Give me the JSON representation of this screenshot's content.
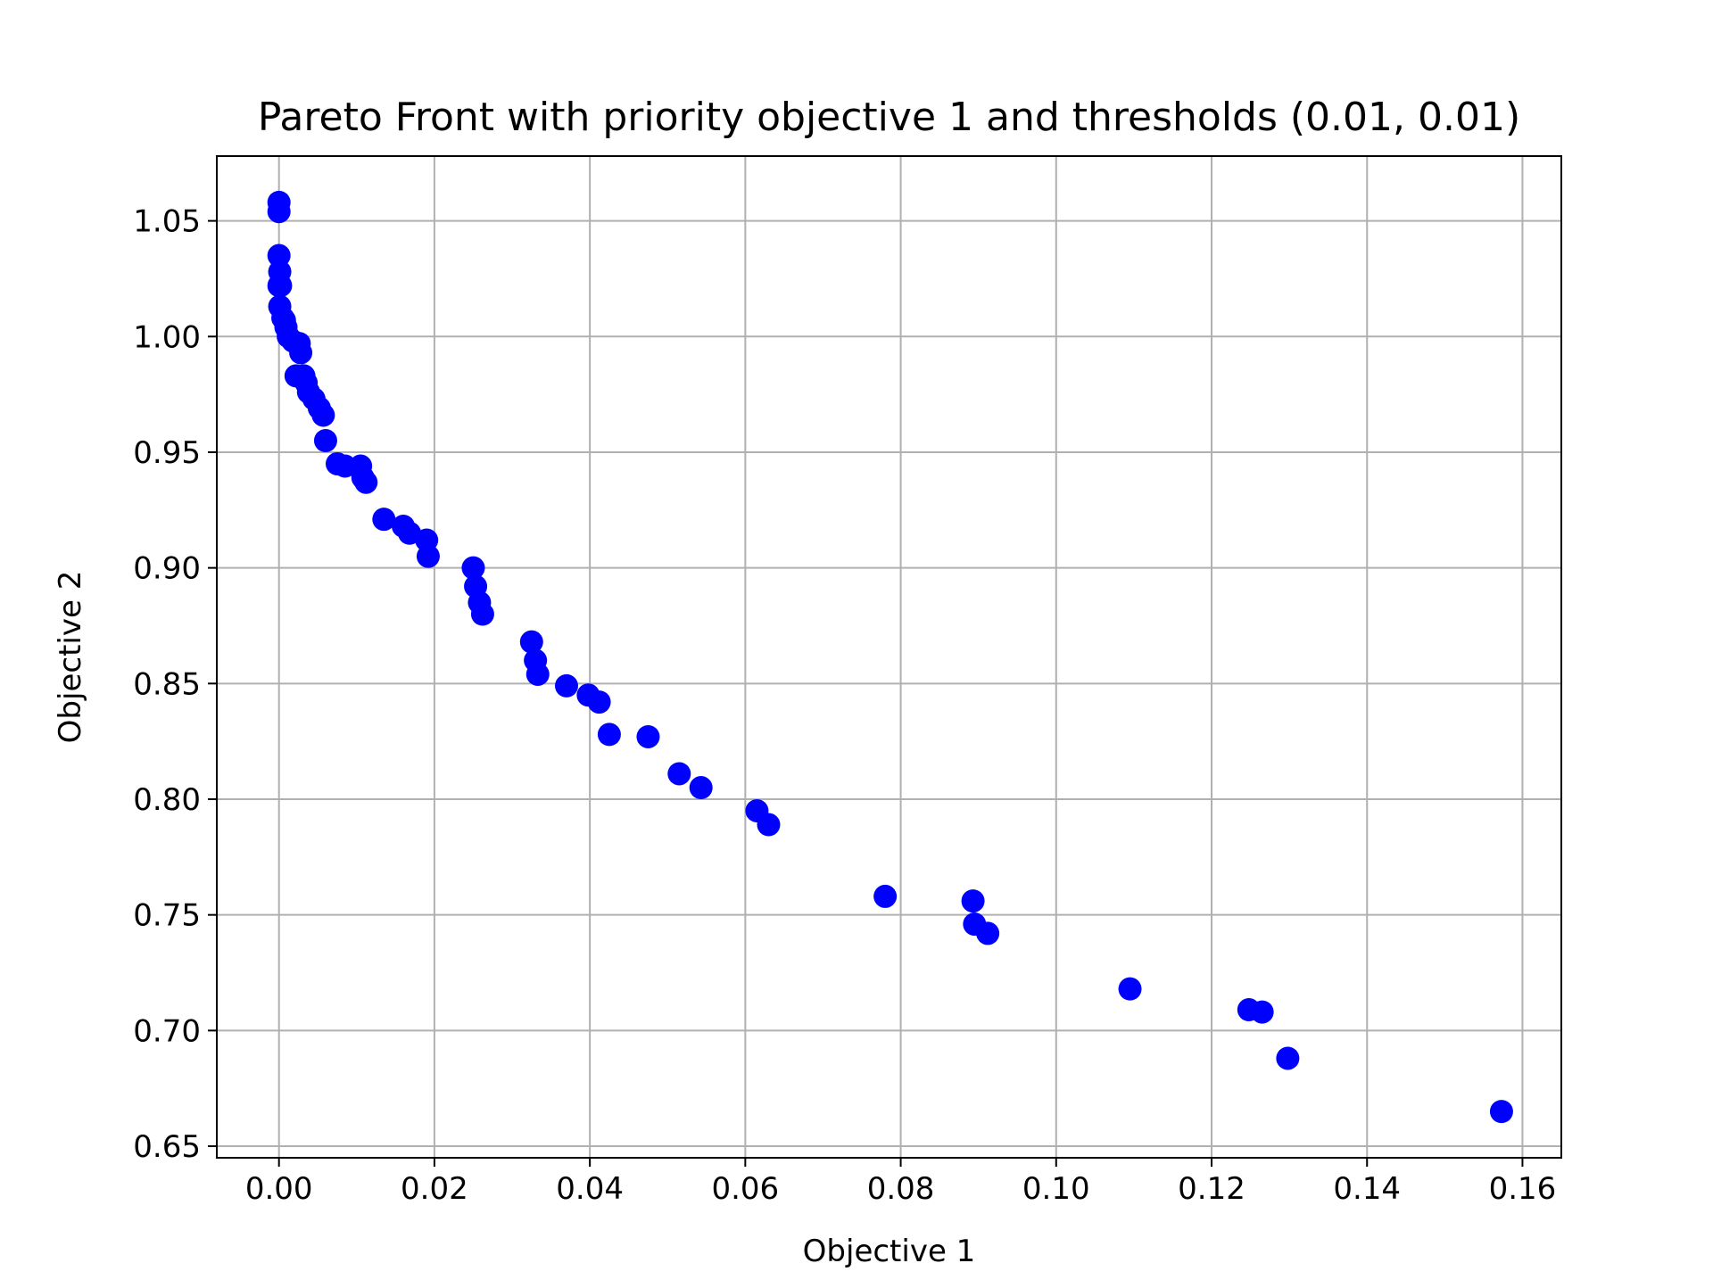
{
  "chart_data": {
    "type": "scatter",
    "title": "Pareto Front with priority objective 1 and thresholds (0.01, 0.01)",
    "xlabel": "Objective 1",
    "ylabel": "Objective 2",
    "xlim": [
      -0.008,
      0.165
    ],
    "ylim": [
      0.645,
      1.078
    ],
    "xticks": [
      0.0,
      0.02,
      0.04,
      0.06,
      0.08,
      0.1,
      0.12,
      0.14,
      0.16
    ],
    "xtick_labels": [
      "0.00",
      "0.02",
      "0.04",
      "0.06",
      "0.08",
      "0.10",
      "0.12",
      "0.14",
      "0.16"
    ],
    "yticks": [
      0.65,
      0.7,
      0.75,
      0.8,
      0.85,
      0.9,
      0.95,
      1.0,
      1.05
    ],
    "ytick_labels": [
      "0.65",
      "0.70",
      "0.75",
      "0.80",
      "0.85",
      "0.90",
      "0.95",
      "1.00",
      "1.05"
    ],
    "grid": true,
    "marker_color": "#0000ff",
    "x": [
      0.0,
      0.0,
      0.0,
      0.0001,
      0.0,
      0.0002,
      0.0001,
      0.0005,
      0.0007,
      0.0009,
      0.0012,
      0.0018,
      0.0026,
      0.0028,
      0.0022,
      0.0032,
      0.0035,
      0.0038,
      0.0045,
      0.0052,
      0.0057,
      0.006,
      0.0075,
      0.0085,
      0.0105,
      0.0108,
      0.0112,
      0.0135,
      0.016,
      0.0168,
      0.019,
      0.0192,
      0.025,
      0.0253,
      0.0258,
      0.0262,
      0.0325,
      0.033,
      0.0333,
      0.037,
      0.0398,
      0.0412,
      0.0425,
      0.0475,
      0.0515,
      0.0543,
      0.0615,
      0.063,
      0.078,
      0.0893,
      0.0895,
      0.0912,
      0.1095,
      0.1248,
      0.1265,
      0.1298,
      0.1573
    ],
    "y": [
      1.058,
      1.054,
      1.035,
      1.028,
      1.022,
      1.022,
      1.013,
      1.008,
      1.007,
      1.004,
      1.0,
      0.998,
      0.997,
      0.993,
      0.983,
      0.983,
      0.98,
      0.976,
      0.973,
      0.969,
      0.966,
      0.955,
      0.945,
      0.944,
      0.944,
      0.939,
      0.937,
      0.921,
      0.918,
      0.915,
      0.912,
      0.905,
      0.9,
      0.892,
      0.885,
      0.88,
      0.868,
      0.86,
      0.854,
      0.849,
      0.845,
      0.842,
      0.828,
      0.827,
      0.811,
      0.805,
      0.795,
      0.789,
      0.758,
      0.756,
      0.746,
      0.742,
      0.718,
      0.709,
      0.708,
      0.688,
      0.665
    ]
  }
}
